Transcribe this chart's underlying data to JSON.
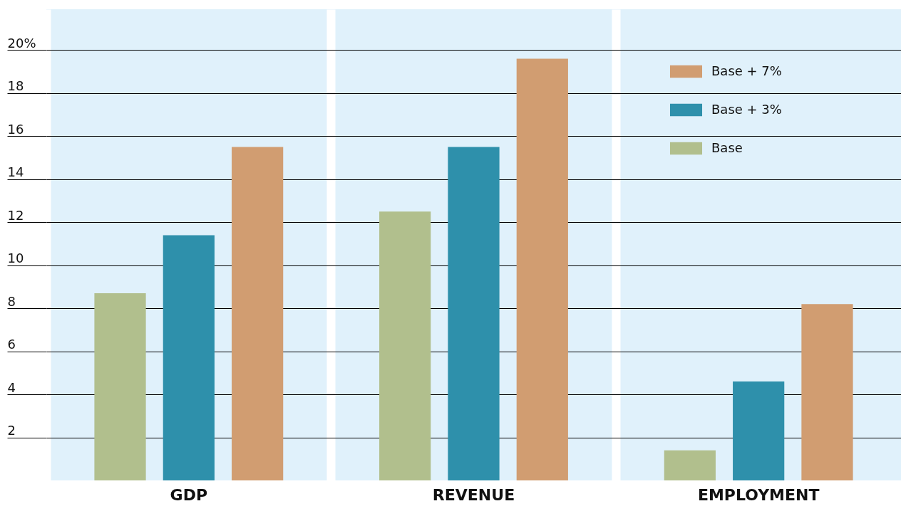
{
  "chart_data": {
    "type": "bar",
    "categories": [
      "GDP",
      "REVENUE",
      "EMPLOYMENT"
    ],
    "series": [
      {
        "name": "Base",
        "color": "#b1bf8d",
        "values": [
          8.7,
          12.5,
          1.4
        ]
      },
      {
        "name": "Base + 3%",
        "color": "#2e90ab",
        "values": [
          11.4,
          15.5,
          4.6
        ]
      },
      {
        "name": "Base + 7%",
        "color": "#d19d71",
        "values": [
          15.5,
          19.6,
          8.2
        ]
      }
    ],
    "ylim": [
      0,
      21.9
    ],
    "yticks": [
      2,
      4,
      6,
      8,
      10,
      12,
      14,
      16,
      18,
      {
        "value": 20,
        "label": "20%"
      }
    ],
    "grid": "y",
    "legend": "top right"
  }
}
